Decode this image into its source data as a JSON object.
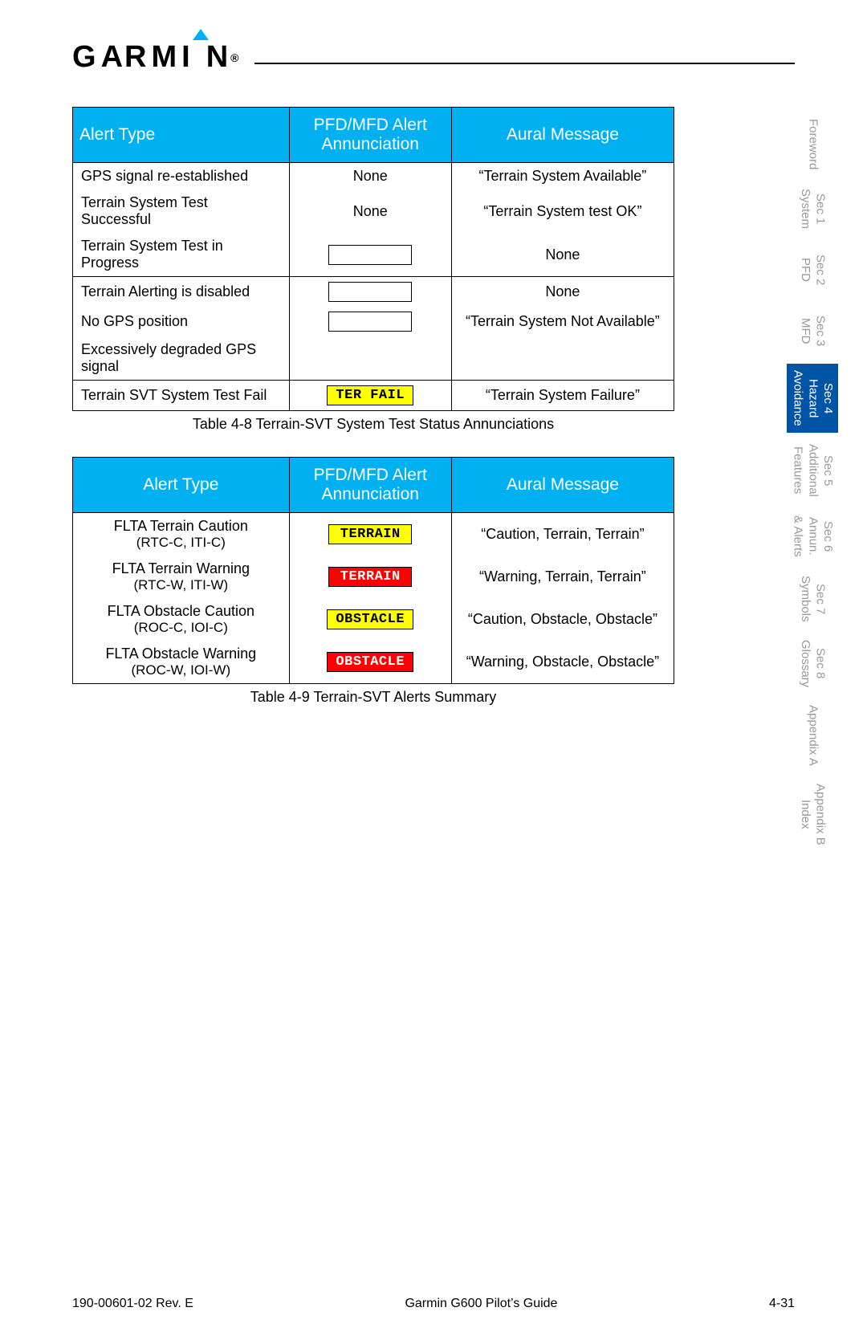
{
  "brand": "GARMIN",
  "colors": {
    "header_bg": "#00b0f0",
    "header_text": "#ffffff",
    "active_tab_bg": "#0054a6",
    "inactive_tab_text": "#999999",
    "badge_yellow": "#ffff00",
    "badge_red": "#ff0000",
    "rule": "#000000"
  },
  "table1": {
    "headers": [
      "Alert Type",
      "PFD/MFD Alert Annunciation",
      "Aural Message"
    ],
    "rows": [
      {
        "type": "GPS signal re-established",
        "annun": {
          "kind": "text",
          "value": "None"
        },
        "aural": "“Terrain System Available”",
        "sep": false
      },
      {
        "type": "Terrain System Test Successful",
        "annun": {
          "kind": "text",
          "value": "None"
        },
        "aural": "“Terrain System test OK”",
        "sep": false
      },
      {
        "type": "Terrain System Test in Progress",
        "annun": {
          "kind": "badge",
          "style": "blank",
          "value": ""
        },
        "aural": "None",
        "sep": true
      },
      {
        "type": "Terrain Alerting is disabled",
        "annun": {
          "kind": "badge",
          "style": "blank",
          "value": ""
        },
        "aural": "None",
        "sep": false
      },
      {
        "type": "No GPS position",
        "annun": {
          "kind": "badge",
          "style": "blank",
          "value": ""
        },
        "aural": "“Terrain System Not Available”",
        "sep": false
      },
      {
        "type": "Excessively degraded GPS signal",
        "annun": {
          "kind": "none"
        },
        "aural": "",
        "sep": true
      },
      {
        "type": "Terrain SVT System Test Fail",
        "annun": {
          "kind": "badge",
          "style": "yellow",
          "value": "TER FAIL"
        },
        "aural": "“Terrain System Failure”",
        "sep": true
      }
    ],
    "caption": "Table 4-8  Terrain-SVT System Test Status Annunciations"
  },
  "table2": {
    "headers": [
      "Alert Type",
      "PFD/MFD Alert Annunciation",
      "Aural Message"
    ],
    "rows": [
      {
        "type": "FLTA Terrain Caution",
        "sub": "(RTC-C, ITI-C)",
        "annun": {
          "kind": "badge",
          "style": "yellow",
          "value": "TERRAIN"
        },
        "aural": "“Caution, Terrain, Terrain”"
      },
      {
        "type": "FLTA Terrain Warning",
        "sub": "(RTC-W, ITI-W)",
        "annun": {
          "kind": "badge",
          "style": "red",
          "value": "TERRAIN"
        },
        "aural": "“Warning, Terrain, Terrain”"
      },
      {
        "type": "FLTA Obstacle Caution",
        "sub": "(ROC-C, IOI-C)",
        "annun": {
          "kind": "badge",
          "style": "yellow",
          "value": "OBSTACLE"
        },
        "aural": "“Caution, Obstacle, Obstacle”"
      },
      {
        "type": "FLTA Obstacle Warning",
        "sub": "(ROC-W, IOI-W)",
        "annun": {
          "kind": "badge",
          "style": "red",
          "value": "OBSTACLE"
        },
        "aural": "“Warning, Obstacle, Obstacle”"
      }
    ],
    "caption": "Table 4-9  Terrain-SVT Alerts Summary"
  },
  "tabs": [
    {
      "label": "Foreword",
      "active": false
    },
    {
      "label": "Sec 1\nSystem",
      "active": false
    },
    {
      "label": "Sec 2\nPFD",
      "active": false
    },
    {
      "label": "Sec 3\nMFD",
      "active": false
    },
    {
      "label": "Sec 4\nHazard\nAvoidance",
      "active": true
    },
    {
      "label": "Sec 5\nAdditional\nFeatures",
      "active": false
    },
    {
      "label": "Sec 6\nAnnun.\n& Alerts",
      "active": false
    },
    {
      "label": "Sec 7\nSymbols",
      "active": false
    },
    {
      "label": "Sec 8\nGlossary",
      "active": false
    },
    {
      "label": "Appendix A",
      "active": false
    },
    {
      "label": "Appendix B\nIndex",
      "active": false
    }
  ],
  "footer": {
    "left": "190-00601-02  Rev. E",
    "center": "Garmin G600 Pilot’s Guide",
    "right": "4-31"
  }
}
